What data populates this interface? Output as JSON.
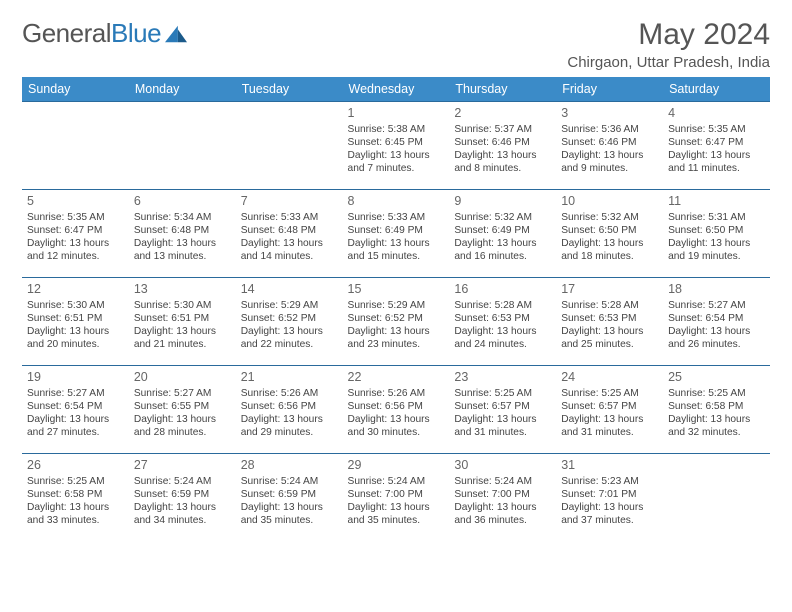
{
  "brand": {
    "part1": "General",
    "part2": "Blue"
  },
  "title": "May 2024",
  "location": "Chirgaon, Uttar Pradesh, India",
  "headers": [
    "Sunday",
    "Monday",
    "Tuesday",
    "Wednesday",
    "Thursday",
    "Friday",
    "Saturday"
  ],
  "colors": {
    "header_bg": "#3b8bc8",
    "header_text": "#ffffff",
    "row_border": "#2a6a9c",
    "brand_gray": "#555555",
    "brand_blue": "#2a7ab8"
  },
  "weeks": [
    [
      {
        "day": "",
        "lines": []
      },
      {
        "day": "",
        "lines": []
      },
      {
        "day": "",
        "lines": []
      },
      {
        "day": "1",
        "lines": [
          "Sunrise: 5:38 AM",
          "Sunset: 6:45 PM",
          "Daylight: 13 hours and 7 minutes."
        ]
      },
      {
        "day": "2",
        "lines": [
          "Sunrise: 5:37 AM",
          "Sunset: 6:46 PM",
          "Daylight: 13 hours and 8 minutes."
        ]
      },
      {
        "day": "3",
        "lines": [
          "Sunrise: 5:36 AM",
          "Sunset: 6:46 PM",
          "Daylight: 13 hours and 9 minutes."
        ]
      },
      {
        "day": "4",
        "lines": [
          "Sunrise: 5:35 AM",
          "Sunset: 6:47 PM",
          "Daylight: 13 hours and 11 minutes."
        ]
      }
    ],
    [
      {
        "day": "5",
        "lines": [
          "Sunrise: 5:35 AM",
          "Sunset: 6:47 PM",
          "Daylight: 13 hours and 12 minutes."
        ]
      },
      {
        "day": "6",
        "lines": [
          "Sunrise: 5:34 AM",
          "Sunset: 6:48 PM",
          "Daylight: 13 hours and 13 minutes."
        ]
      },
      {
        "day": "7",
        "lines": [
          "Sunrise: 5:33 AM",
          "Sunset: 6:48 PM",
          "Daylight: 13 hours and 14 minutes."
        ]
      },
      {
        "day": "8",
        "lines": [
          "Sunrise: 5:33 AM",
          "Sunset: 6:49 PM",
          "Daylight: 13 hours and 15 minutes."
        ]
      },
      {
        "day": "9",
        "lines": [
          "Sunrise: 5:32 AM",
          "Sunset: 6:49 PM",
          "Daylight: 13 hours and 16 minutes."
        ]
      },
      {
        "day": "10",
        "lines": [
          "Sunrise: 5:32 AM",
          "Sunset: 6:50 PM",
          "Daylight: 13 hours and 18 minutes."
        ]
      },
      {
        "day": "11",
        "lines": [
          "Sunrise: 5:31 AM",
          "Sunset: 6:50 PM",
          "Daylight: 13 hours and 19 minutes."
        ]
      }
    ],
    [
      {
        "day": "12",
        "lines": [
          "Sunrise: 5:30 AM",
          "Sunset: 6:51 PM",
          "Daylight: 13 hours and 20 minutes."
        ]
      },
      {
        "day": "13",
        "lines": [
          "Sunrise: 5:30 AM",
          "Sunset: 6:51 PM",
          "Daylight: 13 hours and 21 minutes."
        ]
      },
      {
        "day": "14",
        "lines": [
          "Sunrise: 5:29 AM",
          "Sunset: 6:52 PM",
          "Daylight: 13 hours and 22 minutes."
        ]
      },
      {
        "day": "15",
        "lines": [
          "Sunrise: 5:29 AM",
          "Sunset: 6:52 PM",
          "Daylight: 13 hours and 23 minutes."
        ]
      },
      {
        "day": "16",
        "lines": [
          "Sunrise: 5:28 AM",
          "Sunset: 6:53 PM",
          "Daylight: 13 hours and 24 minutes."
        ]
      },
      {
        "day": "17",
        "lines": [
          "Sunrise: 5:28 AM",
          "Sunset: 6:53 PM",
          "Daylight: 13 hours and 25 minutes."
        ]
      },
      {
        "day": "18",
        "lines": [
          "Sunrise: 5:27 AM",
          "Sunset: 6:54 PM",
          "Daylight: 13 hours and 26 minutes."
        ]
      }
    ],
    [
      {
        "day": "19",
        "lines": [
          "Sunrise: 5:27 AM",
          "Sunset: 6:54 PM",
          "Daylight: 13 hours and 27 minutes."
        ]
      },
      {
        "day": "20",
        "lines": [
          "Sunrise: 5:27 AM",
          "Sunset: 6:55 PM",
          "Daylight: 13 hours and 28 minutes."
        ]
      },
      {
        "day": "21",
        "lines": [
          "Sunrise: 5:26 AM",
          "Sunset: 6:56 PM",
          "Daylight: 13 hours and 29 minutes."
        ]
      },
      {
        "day": "22",
        "lines": [
          "Sunrise: 5:26 AM",
          "Sunset: 6:56 PM",
          "Daylight: 13 hours and 30 minutes."
        ]
      },
      {
        "day": "23",
        "lines": [
          "Sunrise: 5:25 AM",
          "Sunset: 6:57 PM",
          "Daylight: 13 hours and 31 minutes."
        ]
      },
      {
        "day": "24",
        "lines": [
          "Sunrise: 5:25 AM",
          "Sunset: 6:57 PM",
          "Daylight: 13 hours and 31 minutes."
        ]
      },
      {
        "day": "25",
        "lines": [
          "Sunrise: 5:25 AM",
          "Sunset: 6:58 PM",
          "Daylight: 13 hours and 32 minutes."
        ]
      }
    ],
    [
      {
        "day": "26",
        "lines": [
          "Sunrise: 5:25 AM",
          "Sunset: 6:58 PM",
          "Daylight: 13 hours and 33 minutes."
        ]
      },
      {
        "day": "27",
        "lines": [
          "Sunrise: 5:24 AM",
          "Sunset: 6:59 PM",
          "Daylight: 13 hours and 34 minutes."
        ]
      },
      {
        "day": "28",
        "lines": [
          "Sunrise: 5:24 AM",
          "Sunset: 6:59 PM",
          "Daylight: 13 hours and 35 minutes."
        ]
      },
      {
        "day": "29",
        "lines": [
          "Sunrise: 5:24 AM",
          "Sunset: 7:00 PM",
          "Daylight: 13 hours and 35 minutes."
        ]
      },
      {
        "day": "30",
        "lines": [
          "Sunrise: 5:24 AM",
          "Sunset: 7:00 PM",
          "Daylight: 13 hours and 36 minutes."
        ]
      },
      {
        "day": "31",
        "lines": [
          "Sunrise: 5:23 AM",
          "Sunset: 7:01 PM",
          "Daylight: 13 hours and 37 minutes."
        ]
      },
      {
        "day": "",
        "lines": []
      }
    ]
  ]
}
